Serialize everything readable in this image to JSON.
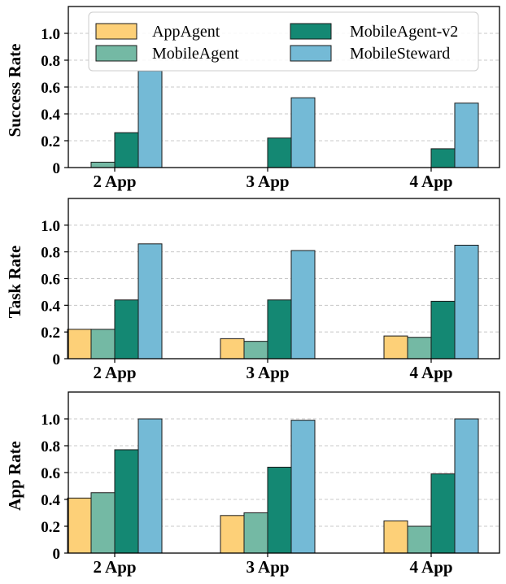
{
  "legend": {
    "placement": "top-center",
    "items": [
      {
        "name": "AppAgent",
        "color": "#FDD078"
      },
      {
        "name": "MobileAgent",
        "color": "#74B9A4"
      },
      {
        "name": "MobileAgent-v2",
        "color": "#148873"
      },
      {
        "name": "MobileSteward",
        "color": "#74BAD6"
      }
    ]
  },
  "chart_data": [
    {
      "type": "bar",
      "ylabel": "Success Rate",
      "xlabel": "",
      "categories": [
        "2 App",
        "3 App",
        "4 App"
      ],
      "ylim": [
        0,
        1.2
      ],
      "yticks": [
        "0",
        "0.2",
        "0.4",
        "0.6",
        "0.8",
        "1.0"
      ],
      "grid": true,
      "series": [
        {
          "name": "AppAgent",
          "values": [
            0.0,
            0.0,
            0.0
          ]
        },
        {
          "name": "MobileAgent",
          "values": [
            0.04,
            0.0,
            0.0
          ]
        },
        {
          "name": "MobileAgent-v2",
          "values": [
            0.26,
            0.22,
            0.14
          ]
        },
        {
          "name": "MobileSteward",
          "values": [
            0.72,
            0.52,
            0.48
          ]
        }
      ]
    },
    {
      "type": "bar",
      "ylabel": "Task Rate",
      "xlabel": "",
      "categories": [
        "2 App",
        "3 App",
        "4 App"
      ],
      "ylim": [
        0,
        1.2
      ],
      "yticks": [
        "0",
        "0.2",
        "0.4",
        "0.6",
        "0.8",
        "1.0"
      ],
      "grid": true,
      "series": [
        {
          "name": "AppAgent",
          "values": [
            0.22,
            0.15,
            0.17
          ]
        },
        {
          "name": "MobileAgent",
          "values": [
            0.22,
            0.13,
            0.16
          ]
        },
        {
          "name": "MobileAgent-v2",
          "values": [
            0.44,
            0.44,
            0.43
          ]
        },
        {
          "name": "MobileSteward",
          "values": [
            0.86,
            0.81,
            0.85
          ]
        }
      ]
    },
    {
      "type": "bar",
      "ylabel": "App Rate",
      "xlabel": "",
      "categories": [
        "2 App",
        "3 App",
        "4 App"
      ],
      "ylim": [
        0,
        1.2
      ],
      "yticks": [
        "0",
        "0.2",
        "0.4",
        "0.6",
        "0.8",
        "1.0"
      ],
      "grid": true,
      "series": [
        {
          "name": "AppAgent",
          "values": [
            0.41,
            0.28,
            0.24
          ]
        },
        {
          "name": "MobileAgent",
          "values": [
            0.45,
            0.3,
            0.2
          ]
        },
        {
          "name": "MobileAgent-v2",
          "values": [
            0.77,
            0.64,
            0.59
          ]
        },
        {
          "name": "MobileSteward",
          "values": [
            1.0,
            0.99,
            1.0
          ]
        }
      ]
    }
  ]
}
